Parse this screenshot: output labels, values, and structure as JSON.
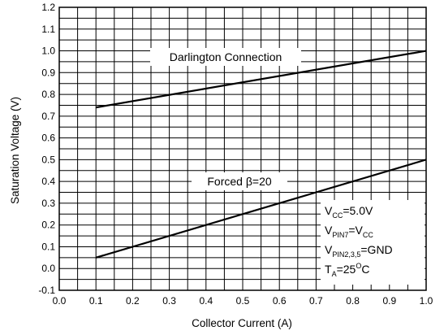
{
  "chart_data": {
    "type": "line",
    "xlabel": "Collector Current (A)",
    "ylabel": "Saturation Voltage (V)",
    "xlim": [
      0.0,
      1.0
    ],
    "ylim": [
      -0.1,
      1.2
    ],
    "x_ticks": [
      "0.0",
      "0.1",
      "0.2",
      "0.3",
      "0.4",
      "0.5",
      "0.6",
      "0.7",
      "0.8",
      "0.9",
      "1.0"
    ],
    "y_ticks": [
      "-0.1",
      "0.0",
      "0.1",
      "0.2",
      "0.3",
      "0.4",
      "0.5",
      "0.6",
      "0.7",
      "0.8",
      "0.9",
      "1.0",
      "1.1",
      "1.2"
    ],
    "grid": true,
    "series": [
      {
        "name": "Darlington Connection",
        "x": [
          0.1,
          1.0
        ],
        "y": [
          0.74,
          1.0
        ]
      },
      {
        "name": "Forced β=20",
        "x": [
          0.1,
          1.0
        ],
        "y": [
          0.05,
          0.5
        ]
      }
    ],
    "annotations": {
      "darlington": "Darlington Connection",
      "forced_prefix": "Forced ",
      "forced_beta": "β",
      "forced_suffix": "=20"
    },
    "conditions": {
      "vcc_main": "V",
      "vcc_sub": "CC",
      "vcc_val": "=5.0V",
      "vpin7_main": "V",
      "vpin7_sub": "PIN7",
      "vpin7_eq": "=V",
      "vpin7_eq_sub": "CC",
      "vpin235_main": "V",
      "vpin235_sub": "PIN2,3,5",
      "vpin235_val": "=GND",
      "ta_main": "T",
      "ta_sub": "A",
      "ta_val": "=25",
      "ta_deg": "O",
      "ta_unit": "C"
    }
  }
}
